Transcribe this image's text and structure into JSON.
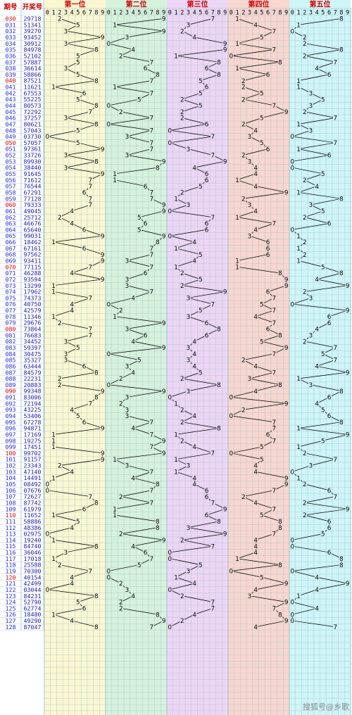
{
  "headers": {
    "issue": "期号",
    "draw": "开奖号",
    "positions": [
      "第一位",
      "第二位",
      "第三位",
      "第四位",
      "第五位"
    ]
  },
  "digits": [
    "0",
    "1",
    "2",
    "3",
    "4",
    "5",
    "6",
    "7",
    "8",
    "9"
  ],
  "watermark": "搜狐号@乡歌",
  "colors": {
    "page_bg": "#ffffff",
    "title_red": "#cc0000",
    "issue_blue": "#2b2bd6",
    "issue_red": "#dd0000",
    "draw_blue": "#1a1aa8",
    "grid": "#9fc0c8",
    "line": "#000000",
    "panels": [
      "#fbf7d3",
      "#d7f2dc",
      "#edd6f5",
      "#f8d7d0",
      "#cff5f8"
    ]
  },
  "chart_data": {
    "type": "line",
    "title": "",
    "subtitle": "",
    "series": [
      {
        "name": "第一位"
      },
      {
        "name": "第二位"
      },
      {
        "name": "第三位"
      },
      {
        "name": "第四位"
      },
      {
        "name": "第五位"
      }
    ],
    "rows": [
      {
        "issue": "030",
        "draw": "29718"
      },
      {
        "issue": "031",
        "draw": "51341"
      },
      {
        "issue": "032",
        "draw": "39270"
      },
      {
        "issue": "033",
        "draw": "93452"
      },
      {
        "issue": "034",
        "draw": "30912"
      },
      {
        "issue": "035",
        "draw": "84978"
      },
      {
        "issue": "036",
        "draw": "52102"
      },
      {
        "issue": "037",
        "draw": "57887"
      },
      {
        "issue": "038",
        "draw": "36614"
      },
      {
        "issue": "039",
        "draw": "58866"
      },
      {
        "issue": "040",
        "draw": "87521"
      },
      {
        "issue": "041",
        "draw": "11621"
      },
      {
        "issue": "042",
        "draw": "67553"
      },
      {
        "issue": "043",
        "draw": "55225"
      },
      {
        "issue": "044",
        "draw": "80573"
      },
      {
        "issue": "045",
        "draw": "72292"
      },
      {
        "issue": "046",
        "draw": "37257"
      },
      {
        "issue": "047",
        "draw": "80621"
      },
      {
        "issue": "048",
        "draw": "57043"
      },
      {
        "issue": "049",
        "draw": "03730"
      },
      {
        "issue": "050",
        "draw": "57057"
      },
      {
        "issue": "051",
        "draw": "97361"
      },
      {
        "issue": "052",
        "draw": "33726"
      },
      {
        "issue": "053",
        "draw": "89930"
      },
      {
        "issue": "054",
        "draw": "38440"
      },
      {
        "issue": "055",
        "draw": "91645"
      },
      {
        "issue": "056",
        "draw": "71612"
      },
      {
        "issue": "057",
        "draw": "76544"
      },
      {
        "issue": "058",
        "draw": "67291"
      },
      {
        "issue": "059",
        "draw": "77128"
      },
      {
        "issue": "060",
        "draw": "79333"
      },
      {
        "issue": "061",
        "draw": "49045"
      },
      {
        "issue": "062",
        "draw": "25712"
      },
      {
        "issue": "063",
        "draw": "46676"
      },
      {
        "issue": "064",
        "draw": "65640"
      },
      {
        "issue": "065",
        "draw": "99031"
      },
      {
        "issue": "066",
        "draw": "18462"
      },
      {
        "issue": "067",
        "draw": "67161"
      },
      {
        "issue": "068",
        "draw": "97562"
      },
      {
        "issue": "069",
        "draw": "93411"
      },
      {
        "issue": "070",
        "draw": "77115"
      },
      {
        "issue": "071",
        "draw": "46288"
      },
      {
        "issue": "072",
        "draw": "93594"
      },
      {
        "issue": "073",
        "draw": "13299"
      },
      {
        "issue": "074",
        "draw": "17962"
      },
      {
        "issue": "075",
        "draw": "74373"
      },
      {
        "issue": "076",
        "draw": "40750"
      },
      {
        "issue": "077",
        "draw": "42579"
      },
      {
        "issue": "078",
        "draw": "11346"
      },
      {
        "issue": "079",
        "draw": "29676"
      },
      {
        "issue": "080",
        "draw": "73864"
      },
      {
        "issue": "081",
        "draw": "76683"
      },
      {
        "issue": "082",
        "draw": "34452"
      },
      {
        "issue": "083",
        "draw": "59397"
      },
      {
        "issue": "084",
        "draw": "30475"
      },
      {
        "issue": "085",
        "draw": "35327"
      },
      {
        "issue": "086",
        "draw": "63444"
      },
      {
        "issue": "087",
        "draw": "84579"
      },
      {
        "issue": "088",
        "draw": "22231"
      },
      {
        "issue": "089",
        "draw": "20883"
      },
      {
        "issue": "090",
        "draw": "99348"
      },
      {
        "issue": "091",
        "draw": "83006"
      },
      {
        "issue": "092",
        "draw": "72194"
      },
      {
        "issue": "093",
        "draw": "43225"
      },
      {
        "issue": "094",
        "draw": "53406"
      },
      {
        "issue": "095",
        "draw": "67278"
      },
      {
        "issue": "096",
        "draw": "94871"
      },
      {
        "issue": "097",
        "draw": "17169"
      },
      {
        "issue": "098",
        "draw": "19275"
      },
      {
        "issue": "099",
        "draw": "17451"
      },
      {
        "issue": "100",
        "draw": "99702"
      },
      {
        "issue": "101",
        "draw": "91157"
      },
      {
        "issue": "102",
        "draw": "23343"
      },
      {
        "issue": "103",
        "draw": "47140"
      },
      {
        "issue": "104",
        "draw": "14491"
      },
      {
        "issue": "105",
        "draw": "08492"
      },
      {
        "issue": "106",
        "draw": "07676"
      },
      {
        "issue": "107",
        "draw": "72627"
      },
      {
        "issue": "108",
        "draw": "87742"
      },
      {
        "issue": "109",
        "draw": "61979"
      },
      {
        "issue": "110",
        "draw": "11652"
      },
      {
        "issue": "111",
        "draw": "58886"
      },
      {
        "issue": "112",
        "draw": "48386"
      },
      {
        "issue": "113",
        "draw": "02975"
      },
      {
        "issue": "114",
        "draw": "19240"
      },
      {
        "issue": "115",
        "draw": "84740"
      },
      {
        "issue": "116",
        "draw": "36046"
      },
      {
        "issue": "117",
        "draw": "17018"
      },
      {
        "issue": "118",
        "draw": "25588"
      },
      {
        "issue": "119",
        "draw": "70300"
      },
      {
        "issue": "120",
        "draw": "40154"
      },
      {
        "issue": "121",
        "draw": "42499"
      },
      {
        "issue": "122",
        "draw": "03044"
      },
      {
        "issue": "123",
        "draw": "84231"
      },
      {
        "issue": "124",
        "draw": "52790"
      },
      {
        "issue": "125",
        "draw": "62774"
      },
      {
        "issue": "126",
        "draw": "18480"
      },
      {
        "issue": "127",
        "draw": "49290"
      },
      {
        "issue": "128",
        "draw": "87047"
      }
    ]
  }
}
